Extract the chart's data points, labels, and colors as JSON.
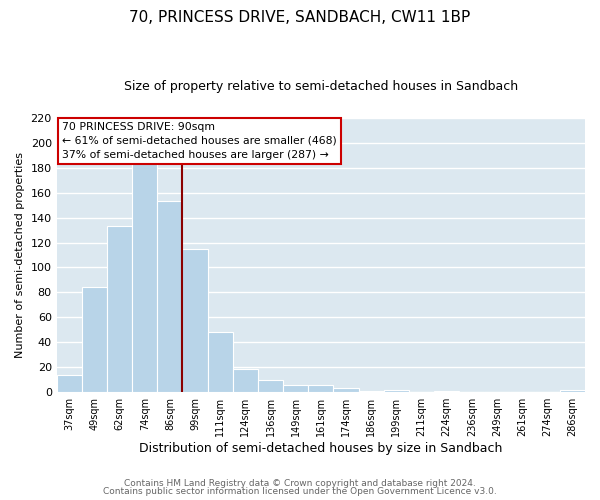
{
  "title": "70, PRINCESS DRIVE, SANDBACH, CW11 1BP",
  "subtitle": "Size of property relative to semi-detached houses in Sandbach",
  "xlabel": "Distribution of semi-detached houses by size in Sandbach",
  "ylabel": "Number of semi-detached properties",
  "bar_labels": [
    "37sqm",
    "49sqm",
    "62sqm",
    "74sqm",
    "86sqm",
    "99sqm",
    "111sqm",
    "124sqm",
    "136sqm",
    "149sqm",
    "161sqm",
    "174sqm",
    "186sqm",
    "199sqm",
    "211sqm",
    "224sqm",
    "236sqm",
    "249sqm",
    "261sqm",
    "274sqm",
    "286sqm"
  ],
  "bar_values": [
    14,
    84,
    133,
    184,
    153,
    115,
    48,
    19,
    10,
    6,
    6,
    3,
    1,
    2,
    0,
    1,
    0,
    0,
    0,
    0,
    2
  ],
  "bar_color": "#b8d4e8",
  "vline_color": "#8b0000",
  "vline_position": 4,
  "ylim": [
    0,
    220
  ],
  "yticks": [
    0,
    20,
    40,
    60,
    80,
    100,
    120,
    140,
    160,
    180,
    200,
    220
  ],
  "annotation_title": "70 PRINCESS DRIVE: 90sqm",
  "annotation_line1": "← 61% of semi-detached houses are smaller (468)",
  "annotation_line2": "37% of semi-detached houses are larger (287) →",
  "annotation_box_facecolor": "white",
  "annotation_box_edgecolor": "#cc0000",
  "footer_line1": "Contains HM Land Registry data © Crown copyright and database right 2024.",
  "footer_line2": "Contains public sector information licensed under the Open Government Licence v3.0.",
  "figure_bg_color": "#ffffff",
  "plot_bg_color": "#dce8f0",
  "grid_color": "white",
  "title_fontsize": 11,
  "subtitle_fontsize": 9,
  "xlabel_fontsize": 9,
  "ylabel_fontsize": 8
}
